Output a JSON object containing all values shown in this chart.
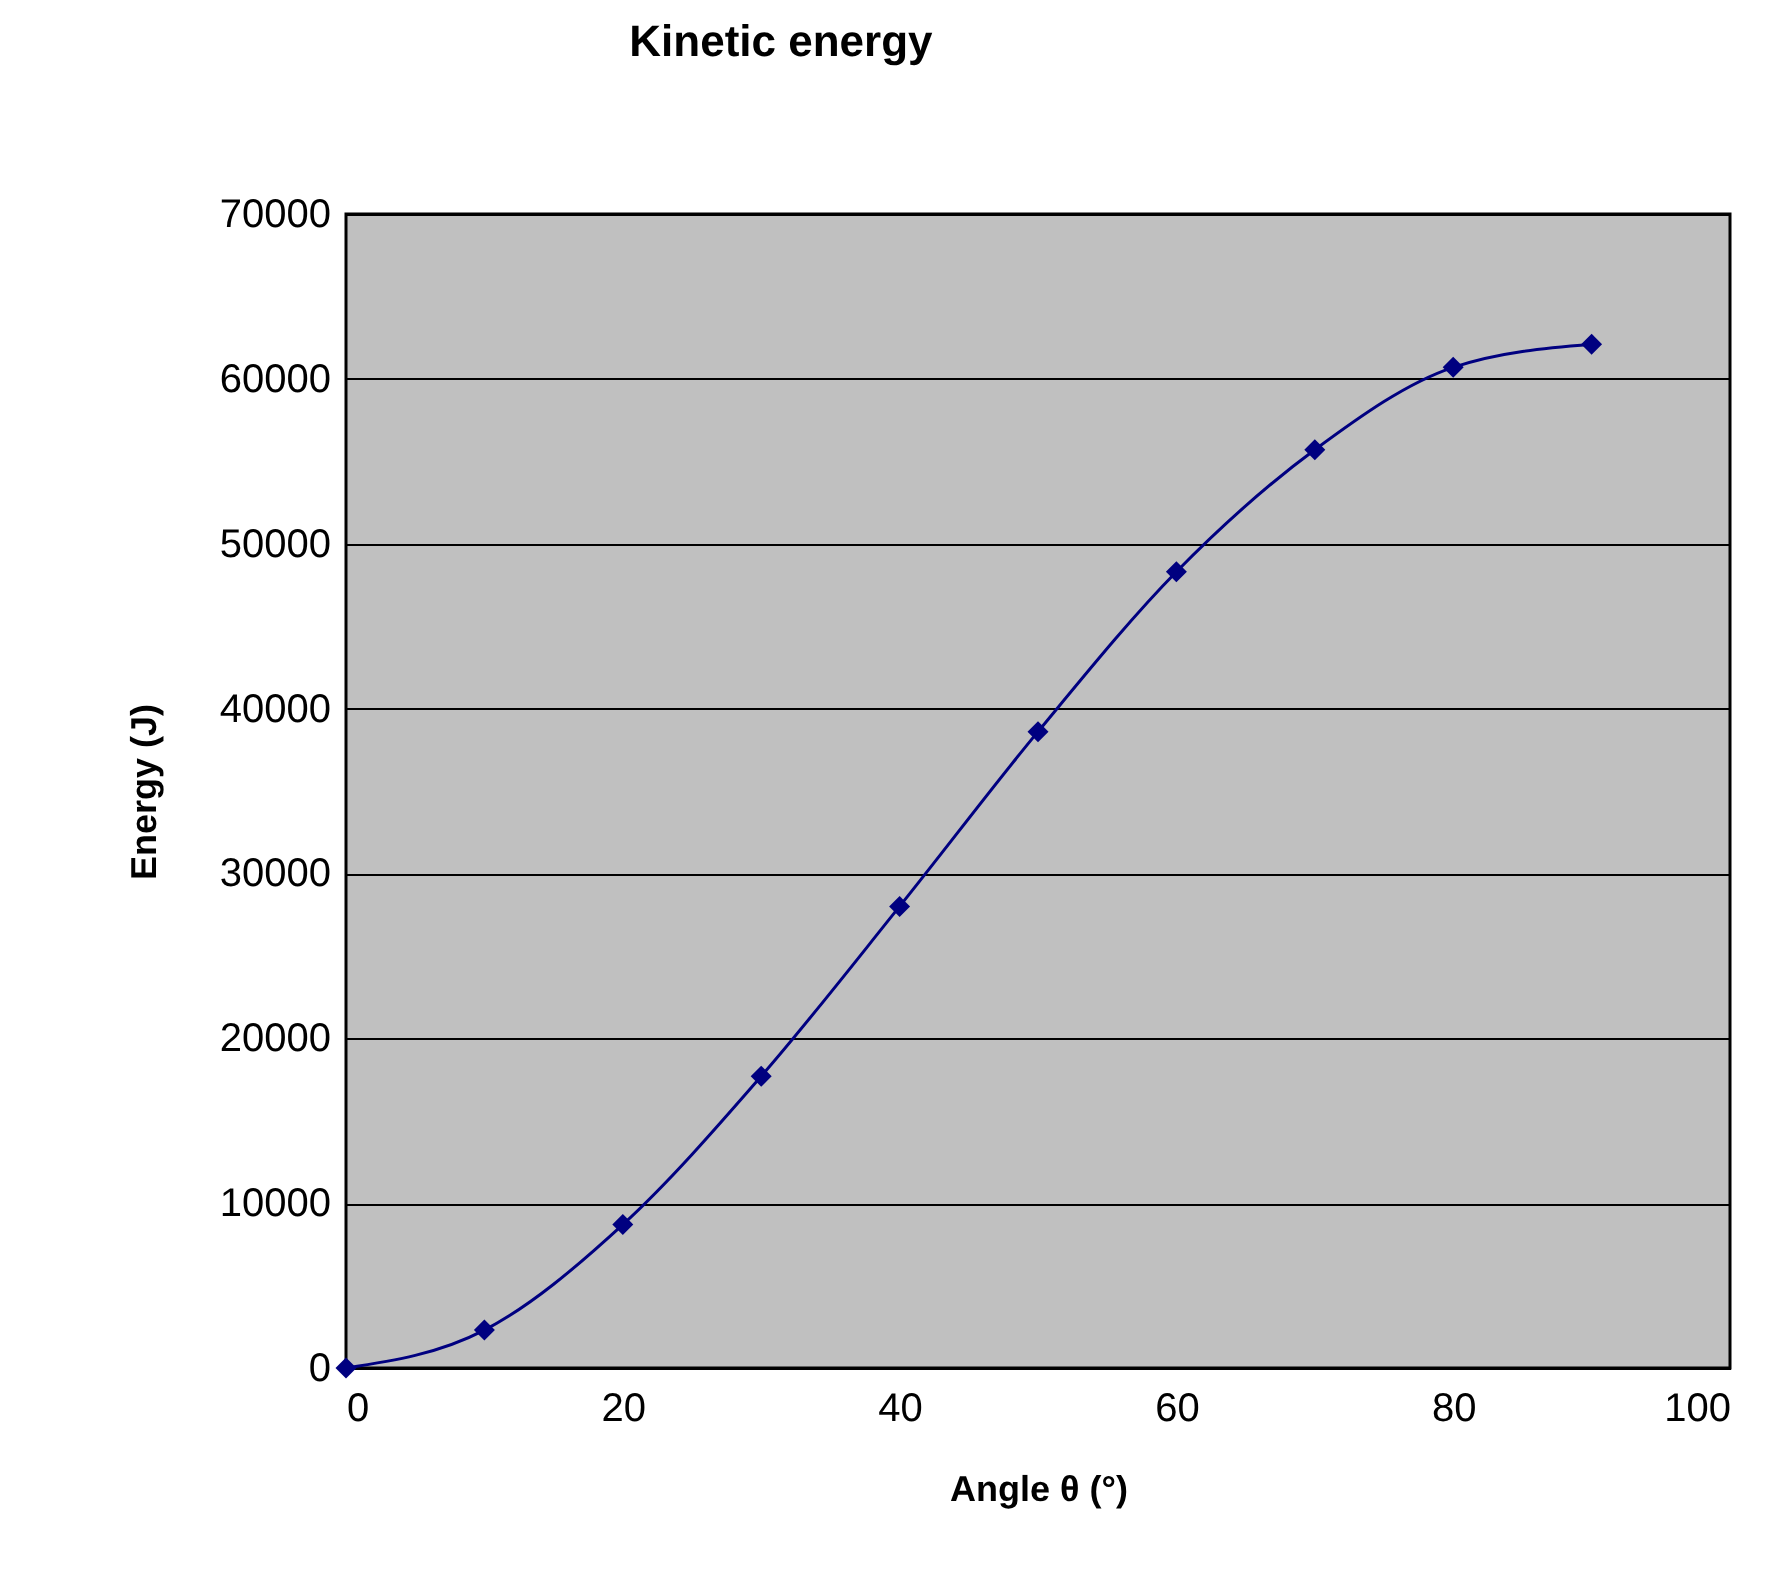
{
  "chart_data": {
    "type": "line",
    "title": "Kinetic energy",
    "xlabel": "Angle θ (°)",
    "ylabel": "Energy (J)",
    "x": [
      0,
      10,
      20,
      30,
      40,
      50,
      60,
      70,
      80,
      90
    ],
    "series": [
      {
        "color": "#000080",
        "values": [
          0,
          2300,
          8700,
          17700,
          28000,
          38600,
          48300,
          55700,
          60700,
          62100
        ]
      }
    ],
    "xlim": [
      0,
      100
    ],
    "xticks": [
      0,
      20,
      40,
      60,
      80,
      100
    ],
    "ylim": [
      0,
      70000
    ],
    "yticks": [
      0,
      10000,
      20000,
      30000,
      40000,
      50000,
      60000,
      70000
    ],
    "grid": "y",
    "marker": "diamond",
    "line_style": "solid",
    "legend": false
  }
}
